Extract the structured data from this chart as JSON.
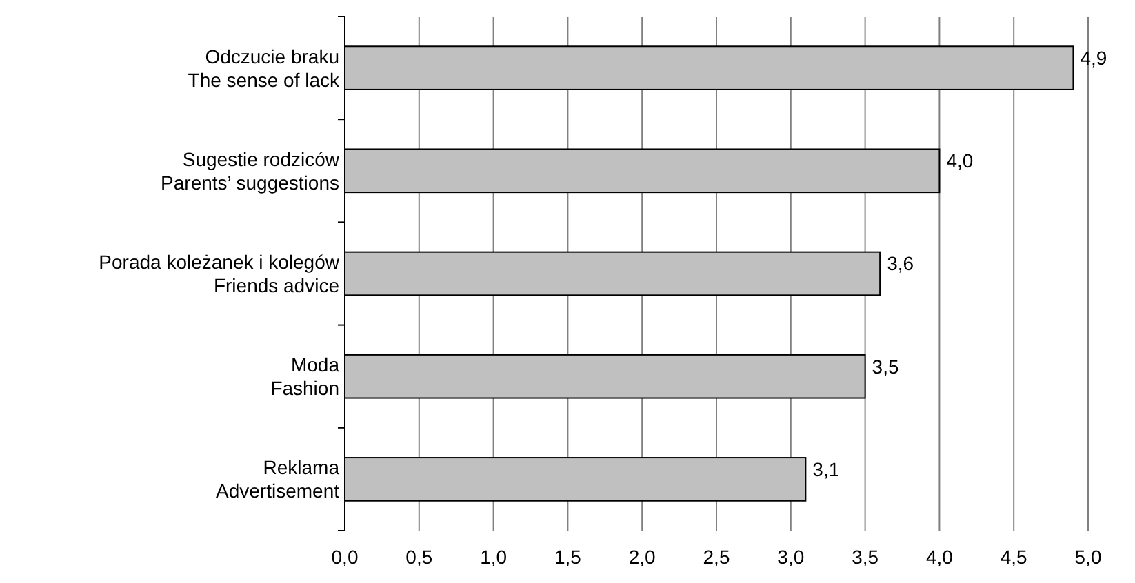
{
  "chart_data": {
    "type": "bar",
    "orientation": "horizontal",
    "categories": [
      "Odczucie braku\nThe sense of lack",
      "Sugestie rodziców\nParents’ suggestions",
      "Porada koleżanek i kolegów\nFriends advice",
      "Moda\nFashion",
      "Reklama\nAdvertisement"
    ],
    "values": [
      4.9,
      4.0,
      3.6,
      3.5,
      3.1
    ],
    "value_labels": [
      "4,9",
      "4,0",
      "3,6",
      "3,5",
      "3,1"
    ],
    "color": "#c0c0c0",
    "xlim": [
      0,
      5
    ],
    "xticks": [
      {
        "value": 0,
        "label": "0,0"
      },
      {
        "value": 0.5,
        "label": "0,5"
      },
      {
        "value": 1,
        "label": "1,0"
      },
      {
        "value": 1.5,
        "label": "1,5"
      },
      {
        "value": 2,
        "label": "2,0"
      },
      {
        "value": 2.5,
        "label": "2,5"
      },
      {
        "value": 3,
        "label": "3,0"
      },
      {
        "value": 3.5,
        "label": "3,5"
      },
      {
        "value": 4,
        "label": "4,0"
      },
      {
        "value": 4.5,
        "label": "4,5"
      },
      {
        "value": 5,
        "label": "5,0"
      }
    ],
    "grid": "x"
  }
}
